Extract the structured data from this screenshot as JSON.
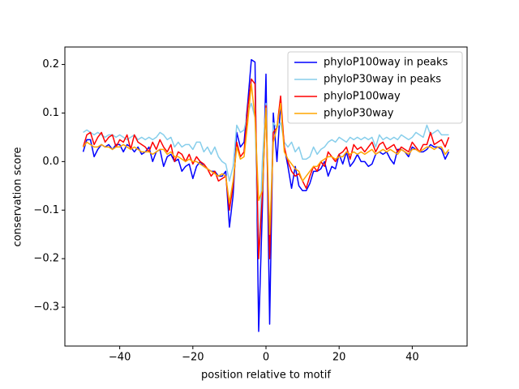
{
  "chart_data": {
    "type": "line",
    "x_label": "position relative to motif",
    "y_label": "conservation score",
    "xlim": [
      -55,
      55
    ],
    "ylim": [
      -0.38,
      0.236
    ],
    "xticks": [
      {
        "value": -40,
        "label": "−40"
      },
      {
        "value": -20,
        "label": "−20"
      },
      0,
      20,
      40
    ],
    "yticks": [
      {
        "value": -0.3,
        "label": "−0.3"
      },
      {
        "value": -0.2,
        "label": "−0.2"
      },
      {
        "value": -0.1,
        "label": "−0.1"
      },
      {
        "value": 0,
        "label": "0.0"
      },
      0.1,
      0.2
    ],
    "legend": "upper right",
    "x": [
      -50,
      -49,
      -48,
      -47,
      -46,
      -45,
      -44,
      -43,
      -42,
      -41,
      -40,
      -39,
      -38,
      -37,
      -36,
      -35,
      -34,
      -33,
      -32,
      -31,
      -30,
      -29,
      -28,
      -27,
      -26,
      -25,
      -24,
      -23,
      -22,
      -21,
      -20,
      -19,
      -18,
      -17,
      -16,
      -15,
      -14,
      -13,
      -12,
      -11,
      -10,
      -9,
      -8,
      -7,
      -6,
      -5,
      -4,
      -3,
      -2,
      -1,
      0,
      1,
      2,
      3,
      4,
      5,
      6,
      7,
      8,
      9,
      10,
      11,
      12,
      13,
      14,
      15,
      16,
      17,
      18,
      19,
      20,
      21,
      22,
      23,
      24,
      25,
      26,
      27,
      28,
      29,
      30,
      31,
      32,
      33,
      34,
      35,
      36,
      37,
      38,
      39,
      40,
      41,
      42,
      43,
      44,
      45,
      46,
      47,
      48,
      49,
      50
    ],
    "series": [
      {
        "name": "phyloP100way in peaks",
        "color": "#0000ff",
        "values": [
          0.02,
          0.045,
          0.045,
          0.01,
          0.025,
          0.035,
          0.03,
          0.035,
          0.025,
          0.035,
          0.035,
          0.02,
          0.035,
          0.03,
          0.02,
          0.03,
          0.015,
          0.02,
          0.03,
          0.0,
          0.02,
          0.025,
          -0.01,
          0.01,
          0.015,
          0.0,
          0.005,
          -0.02,
          -0.01,
          -0.005,
          -0.035,
          -0.01,
          0.0,
          -0.01,
          -0.015,
          -0.02,
          -0.02,
          -0.03,
          -0.03,
          -0.02,
          -0.135,
          -0.07,
          0.06,
          0.03,
          0.04,
          0.12,
          0.21,
          0.205,
          -0.35,
          -0.1,
          0.18,
          -0.335,
          0.1,
          0.0,
          0.12,
          0.03,
          -0.01,
          -0.055,
          -0.01,
          -0.05,
          -0.06,
          -0.06,
          -0.045,
          -0.02,
          -0.02,
          -0.015,
          0.0,
          -0.03,
          -0.01,
          -0.015,
          0.015,
          -0.005,
          0.02,
          -0.01,
          0.0,
          0.015,
          0.0,
          0.0,
          -0.01,
          -0.005,
          0.015,
          0.02,
          0.015,
          0.02,
          0.005,
          -0.005,
          0.025,
          0.025,
          0.02,
          0.01,
          0.03,
          0.025,
          0.02,
          0.02,
          0.025,
          0.035,
          0.03,
          0.03,
          0.025,
          0.005,
          0.02
        ]
      },
      {
        "name": "phyloP30way in peaks",
        "color": "#87ceeb",
        "values": [
          0.06,
          0.065,
          0.06,
          0.055,
          0.06,
          0.055,
          0.05,
          0.055,
          0.055,
          0.05,
          0.055,
          0.05,
          0.045,
          0.05,
          0.055,
          0.045,
          0.05,
          0.045,
          0.05,
          0.045,
          0.05,
          0.06,
          0.055,
          0.045,
          0.05,
          0.03,
          0.04,
          0.03,
          0.035,
          0.035,
          0.025,
          0.04,
          0.04,
          0.02,
          0.03,
          0.015,
          0.03,
          0.01,
          0.0,
          -0.005,
          -0.04,
          -0.01,
          0.075,
          0.06,
          0.065,
          0.1,
          0.12,
          0.09,
          -0.2,
          0.0,
          0.12,
          -0.17,
          0.08,
          0.07,
          0.08,
          0.04,
          0.03,
          0.04,
          0.02,
          0.03,
          0.005,
          0.005,
          0.01,
          0.03,
          0.015,
          0.025,
          0.03,
          0.04,
          0.045,
          0.04,
          0.05,
          0.045,
          0.04,
          0.05,
          0.045,
          0.05,
          0.045,
          0.05,
          0.045,
          0.05,
          0.03,
          0.055,
          0.045,
          0.05,
          0.045,
          0.05,
          0.045,
          0.055,
          0.05,
          0.045,
          0.05,
          0.06,
          0.055,
          0.05,
          0.075,
          0.055,
          0.06,
          0.065,
          0.055,
          0.055,
          0.055
        ]
      },
      {
        "name": "phyloP100way",
        "color": "#ff0000",
        "values": [
          0.03,
          0.055,
          0.06,
          0.035,
          0.05,
          0.06,
          0.04,
          0.05,
          0.055,
          0.03,
          0.045,
          0.04,
          0.055,
          0.025,
          0.055,
          0.04,
          0.035,
          0.03,
          0.02,
          0.04,
          0.025,
          0.045,
          0.03,
          0.02,
          0.035,
          0.0,
          0.02,
          0.015,
          0.0,
          0.015,
          -0.005,
          0.01,
          0.0,
          -0.005,
          -0.015,
          -0.03,
          -0.02,
          -0.04,
          -0.035,
          -0.03,
          -0.1,
          -0.05,
          0.04,
          0.01,
          0.02,
          0.11,
          0.17,
          0.16,
          -0.2,
          -0.07,
          0.115,
          -0.2,
          0.06,
          0.07,
          0.135,
          0.03,
          0.0,
          -0.02,
          -0.03,
          -0.025,
          -0.04,
          -0.055,
          -0.03,
          -0.01,
          -0.02,
          0.0,
          -0.01,
          0.02,
          0.01,
          0.0,
          0.015,
          0.02,
          0.03,
          0.005,
          0.035,
          0.025,
          0.03,
          0.02,
          0.03,
          0.04,
          0.02,
          0.035,
          0.04,
          0.025,
          0.03,
          0.035,
          0.02,
          0.03,
          0.025,
          0.02,
          0.04,
          0.03,
          0.02,
          0.035,
          0.035,
          0.06,
          0.035,
          0.04,
          0.045,
          0.03,
          0.05
        ]
      },
      {
        "name": "phyloP30way",
        "color": "#ffa500",
        "values": [
          0.03,
          0.04,
          0.035,
          0.03,
          0.03,
          0.035,
          0.03,
          0.03,
          0.025,
          0.03,
          0.03,
          0.035,
          0.03,
          0.025,
          0.03,
          0.025,
          0.02,
          0.02,
          0.02,
          0.015,
          0.02,
          0.025,
          0.025,
          0.015,
          0.02,
          0.01,
          0.01,
          0.005,
          0.0,
          0.005,
          0.0,
          0.0,
          -0.005,
          -0.01,
          -0.015,
          -0.02,
          -0.025,
          -0.03,
          -0.025,
          -0.03,
          -0.085,
          -0.04,
          0.03,
          0.005,
          0.01,
          0.08,
          0.16,
          0.09,
          -0.08,
          -0.06,
          0.11,
          -0.15,
          0.04,
          0.07,
          0.12,
          0.02,
          0.005,
          -0.005,
          -0.015,
          -0.02,
          -0.04,
          -0.03,
          -0.02,
          -0.01,
          -0.01,
          0.0,
          0.005,
          0.01,
          0.01,
          0.005,
          0.01,
          0.01,
          0.02,
          0.015,
          0.02,
          0.015,
          0.02,
          0.015,
          0.02,
          0.025,
          0.015,
          0.02,
          0.025,
          0.02,
          0.025,
          0.02,
          0.015,
          0.025,
          0.02,
          0.015,
          0.025,
          0.025,
          0.02,
          0.025,
          0.03,
          0.03,
          0.025,
          0.03,
          0.03,
          0.015,
          0.025
        ]
      }
    ]
  }
}
